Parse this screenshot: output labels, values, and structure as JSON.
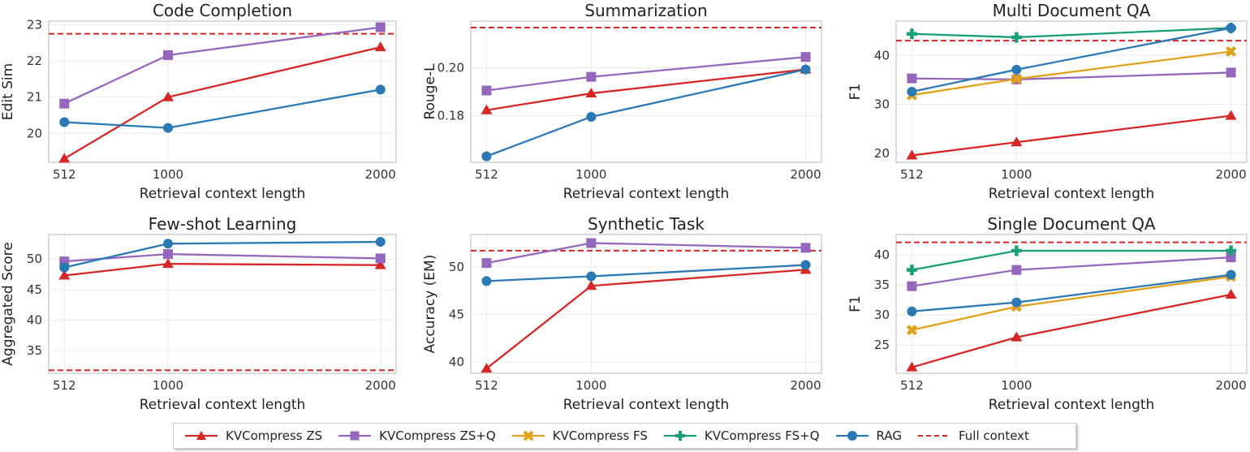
{
  "series_styles": {
    "zs": {
      "name": "KVCompress ZS",
      "color": "#d62728",
      "marker": "triangle"
    },
    "zsq": {
      "name": "KVCompress ZS+Q",
      "color": "#9467bd",
      "marker": "square"
    },
    "fs": {
      "name": "KVCompress FS",
      "color": "#e0a11b",
      "marker": "x"
    },
    "fsq": {
      "name": "KVCompress FS+Q",
      "color": "#1a9e77",
      "marker": "plus"
    },
    "rag": {
      "name": "RAG",
      "color": "#2a78b4",
      "marker": "circle"
    },
    "full": {
      "name": "Full context",
      "color": "#d62728",
      "marker": "dashed"
    }
  },
  "legend": {
    "items": [
      "KVCompress ZS",
      "KVCompress ZS+Q",
      "KVCompress FS",
      "KVCompress FS+Q",
      "RAG",
      "Full context"
    ]
  },
  "chart_data": [
    {
      "type": "line",
      "title": "Code Completion",
      "xlabel": "Retrieval context length",
      "ylabel": "Edit Sim",
      "x": [
        512,
        1000,
        2000
      ],
      "xticks": [
        "512",
        "1000",
        "2000"
      ],
      "ylim": [
        19.2,
        23.1
      ],
      "yticks": [
        20,
        21,
        22,
        23
      ],
      "ytick_labels": [
        "20",
        "21",
        "22",
        "23"
      ],
      "full_context": 22.75,
      "series": [
        {
          "key": "zs",
          "values": [
            19.3,
            21.0,
            22.38
          ]
        },
        {
          "key": "zsq",
          "values": [
            20.82,
            22.16,
            22.93
          ]
        },
        {
          "key": "rag",
          "values": [
            20.31,
            20.15,
            21.21
          ]
        }
      ]
    },
    {
      "type": "line",
      "title": "Summarization",
      "xlabel": "Retrieval context length",
      "ylabel": "Rouge-L",
      "x": [
        512,
        1000,
        2000
      ],
      "xticks": [
        "512",
        "1000",
        "2000"
      ],
      "ylim": [
        0.1605,
        0.2195
      ],
      "yticks": [
        0.18,
        0.2
      ],
      "ytick_labels": [
        "0.18",
        "0.20"
      ],
      "full_context": 0.2168,
      "series": [
        {
          "key": "zs",
          "values": [
            0.1823,
            0.1893,
            0.1993
          ]
        },
        {
          "key": "zsq",
          "values": [
            0.1905,
            0.1962,
            0.2045
          ]
        },
        {
          "key": "rag",
          "values": [
            0.163,
            0.1795,
            0.1993
          ]
        }
      ]
    },
    {
      "type": "line",
      "title": "Multi Document QA",
      "xlabel": "Retrieval context length",
      "ylabel": "F1",
      "x": [
        512,
        1000,
        2000
      ],
      "xticks": [
        "512",
        "1000",
        "2000"
      ],
      "ylim": [
        18.2,
        47.0
      ],
      "yticks": [
        20,
        30,
        40
      ],
      "ytick_labels": [
        "20",
        "30",
        "40"
      ],
      "full_context": 43.0,
      "series": [
        {
          "key": "zs",
          "values": [
            19.6,
            22.3,
            27.7
          ]
        },
        {
          "key": "zsq",
          "values": [
            35.3,
            35.1,
            36.5
          ]
        },
        {
          "key": "fs",
          "values": [
            31.9,
            35.2,
            40.8
          ]
        },
        {
          "key": "fsq",
          "values": [
            44.4,
            43.7,
            45.6
          ]
        },
        {
          "key": "rag",
          "values": [
            32.6,
            37.1,
            45.6
          ]
        }
      ]
    },
    {
      "type": "line",
      "title": "Few-shot Learning",
      "xlabel": "Retrieval context length",
      "ylabel": "Aggregated Score",
      "x": [
        512,
        1000,
        2000
      ],
      "xticks": [
        "512",
        "1000",
        "2000"
      ],
      "ylim": [
        31.3,
        54.0
      ],
      "yticks": [
        35,
        40,
        45,
        50
      ],
      "ytick_labels": [
        "35",
        "40",
        "45",
        "50"
      ],
      "full_context": 31.8,
      "series": [
        {
          "key": "zs",
          "values": [
            47.3,
            49.2,
            49.0
          ]
        },
        {
          "key": "zsq",
          "values": [
            49.6,
            50.8,
            50.1
          ]
        },
        {
          "key": "rag",
          "values": [
            48.6,
            52.5,
            52.8
          ]
        }
      ]
    },
    {
      "type": "line",
      "title": "Synthetic Task",
      "xlabel": "Retrieval context length",
      "ylabel": "Accuracy (EM)",
      "x": [
        512,
        1000,
        2000
      ],
      "xticks": [
        "512",
        "1000",
        "2000"
      ],
      "ylim": [
        38.8,
        53.4
      ],
      "yticks": [
        40,
        45,
        50
      ],
      "ytick_labels": [
        "40",
        "45",
        "50"
      ],
      "full_context": 51.7,
      "series": [
        {
          "key": "zs",
          "values": [
            39.3,
            48.0,
            49.7
          ]
        },
        {
          "key": "zsq",
          "values": [
            50.4,
            52.5,
            52.0
          ]
        },
        {
          "key": "rag",
          "values": [
            48.5,
            49.0,
            50.2
          ]
        }
      ]
    },
    {
      "type": "line",
      "title": "Single Document QA",
      "xlabel": "Retrieval context length",
      "ylabel": "F1",
      "x": [
        512,
        1000,
        2000
      ],
      "xticks": [
        "512",
        "1000",
        "2000"
      ],
      "ylim": [
        20.3,
        43.4
      ],
      "yticks": [
        25,
        30,
        35,
        40
      ],
      "ytick_labels": [
        "25",
        "30",
        "35",
        "40"
      ],
      "full_context": 42.1,
      "series": [
        {
          "key": "zs",
          "values": [
            21.3,
            26.3,
            33.4
          ]
        },
        {
          "key": "zsq",
          "values": [
            34.8,
            37.5,
            39.6
          ]
        },
        {
          "key": "fs",
          "values": [
            27.5,
            31.4,
            36.4
          ]
        },
        {
          "key": "fsq",
          "values": [
            37.5,
            40.7,
            40.7
          ]
        },
        {
          "key": "rag",
          "values": [
            30.6,
            32.1,
            36.7
          ]
        }
      ]
    }
  ]
}
